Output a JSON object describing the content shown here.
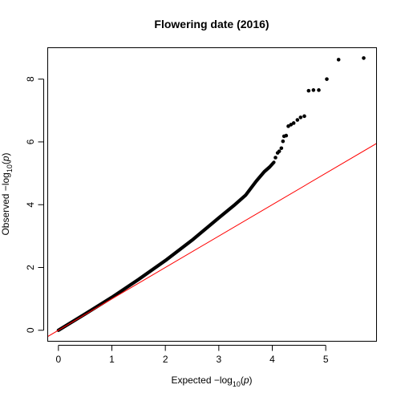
{
  "chart_data": {
    "type": "scatter",
    "title": "Flowering date (2016)",
    "xlabel": {
      "prefix": "Expected  −log",
      "sub": "10",
      "open": "(",
      "var": "p",
      "close": ")"
    },
    "ylabel": {
      "prefix": "Observed  −log",
      "sub": "10",
      "open": "(",
      "var": "p",
      "close": ")"
    },
    "xlim": [
      -0.2,
      5.95
    ],
    "ylim": [
      -0.35,
      9.0
    ],
    "x_ticks": [
      0,
      1,
      2,
      3,
      4,
      5
    ],
    "y_ticks": [
      0,
      2,
      4,
      6,
      8
    ],
    "x_tick_labels": [
      "0",
      "1",
      "2",
      "3",
      "4",
      "5"
    ],
    "y_tick_labels": [
      "0",
      "2",
      "4",
      "6",
      "8"
    ],
    "reference_line": {
      "slope": 1,
      "intercept": 0,
      "color": "#ff0000"
    },
    "point_color": "#000000",
    "curve": [
      [
        0.0,
        0.0
      ],
      [
        0.5,
        0.52
      ],
      [
        1.0,
        1.05
      ],
      [
        1.5,
        1.62
      ],
      [
        2.0,
        2.22
      ],
      [
        2.5,
        2.87
      ],
      [
        3.0,
        3.58
      ],
      [
        3.3,
        4.0
      ],
      [
        3.5,
        4.3
      ],
      [
        3.7,
        4.75
      ],
      [
        3.85,
        5.05
      ],
      [
        3.95,
        5.2
      ],
      [
        4.03,
        5.35
      ]
    ],
    "tail_points": [
      [
        4.06,
        5.5
      ],
      [
        4.1,
        5.65
      ],
      [
        4.13,
        5.7
      ],
      [
        4.17,
        5.8
      ],
      [
        4.2,
        6.02
      ],
      [
        4.22,
        6.18
      ],
      [
        4.26,
        6.2
      ],
      [
        4.3,
        6.5
      ],
      [
        4.35,
        6.55
      ],
      [
        4.4,
        6.6
      ],
      [
        4.47,
        6.7
      ],
      [
        4.53,
        6.78
      ],
      [
        4.6,
        6.82
      ],
      [
        4.68,
        7.63
      ],
      [
        4.77,
        7.65
      ],
      [
        4.87,
        7.65
      ],
      [
        5.02,
        8.0
      ],
      [
        5.24,
        8.62
      ],
      [
        5.71,
        8.67
      ]
    ]
  }
}
